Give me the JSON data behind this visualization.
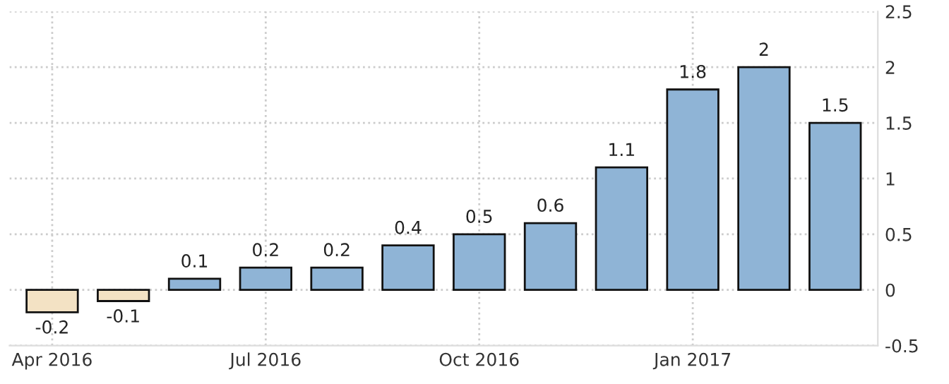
{
  "chart_data": {
    "type": "bar",
    "categories": [
      "Apr 2016",
      null,
      null,
      "Jul 2016",
      null,
      null,
      "Oct 2016",
      null,
      null,
      "Jan 2017",
      null,
      null
    ],
    "values": [
      -0.2,
      -0.1,
      0.1,
      0.2,
      0.2,
      0.4,
      0.5,
      0.6,
      1.1,
      1.8,
      2,
      1.5
    ],
    "colors": [
      "#f3e2c4",
      "#f3e2c4",
      "#8fb4d6",
      "#8fb4d6",
      "#8fb4d6",
      "#8fb4d6",
      "#8fb4d6",
      "#8fb4d6",
      "#8fb4d6",
      "#8fb4d6",
      "#8fb4d6",
      "#8fb4d6"
    ],
    "ylim": [
      -0.5,
      2.5
    ],
    "yticks": [
      -0.5,
      0,
      0.5,
      1,
      1.5,
      2,
      2.5
    ],
    "grid": true,
    "data_labels": true
  }
}
